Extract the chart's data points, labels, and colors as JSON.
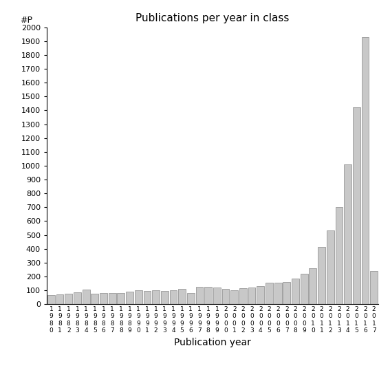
{
  "title": "Publications per year in class",
  "xlabel": "Publication year",
  "ylabel": "#P",
  "bar_color": "#c8c8c8",
  "bar_edge_color": "#888888",
  "background_color": "#ffffff",
  "ylim": [
    0,
    2000
  ],
  "yticks": [
    0,
    100,
    200,
    300,
    400,
    500,
    600,
    700,
    800,
    900,
    1000,
    1100,
    1200,
    1300,
    1400,
    1500,
    1600,
    1700,
    1800,
    1900,
    2000
  ],
  "years": [
    "1980",
    "1981",
    "1982",
    "1983",
    "1984",
    "1985",
    "1986",
    "1987",
    "1988",
    "1989",
    "1990",
    "1991",
    "1992",
    "1993",
    "1994",
    "1995",
    "1996",
    "1997",
    "1998",
    "1999",
    "2000",
    "2001",
    "2002",
    "2003",
    "2004",
    "2005",
    "2006",
    "2007",
    "2008",
    "2009",
    "2010",
    "2011",
    "2012",
    "2013",
    "2014",
    "2015",
    "2016",
    "2017"
  ],
  "values": [
    65,
    70,
    75,
    85,
    105,
    75,
    80,
    80,
    80,
    90,
    100,
    95,
    100,
    95,
    100,
    110,
    80,
    125,
    125,
    120,
    110,
    100,
    115,
    120,
    130,
    155,
    155,
    160,
    185,
    220,
    260,
    415,
    535,
    700,
    1010,
    1420,
    1930,
    240
  ]
}
